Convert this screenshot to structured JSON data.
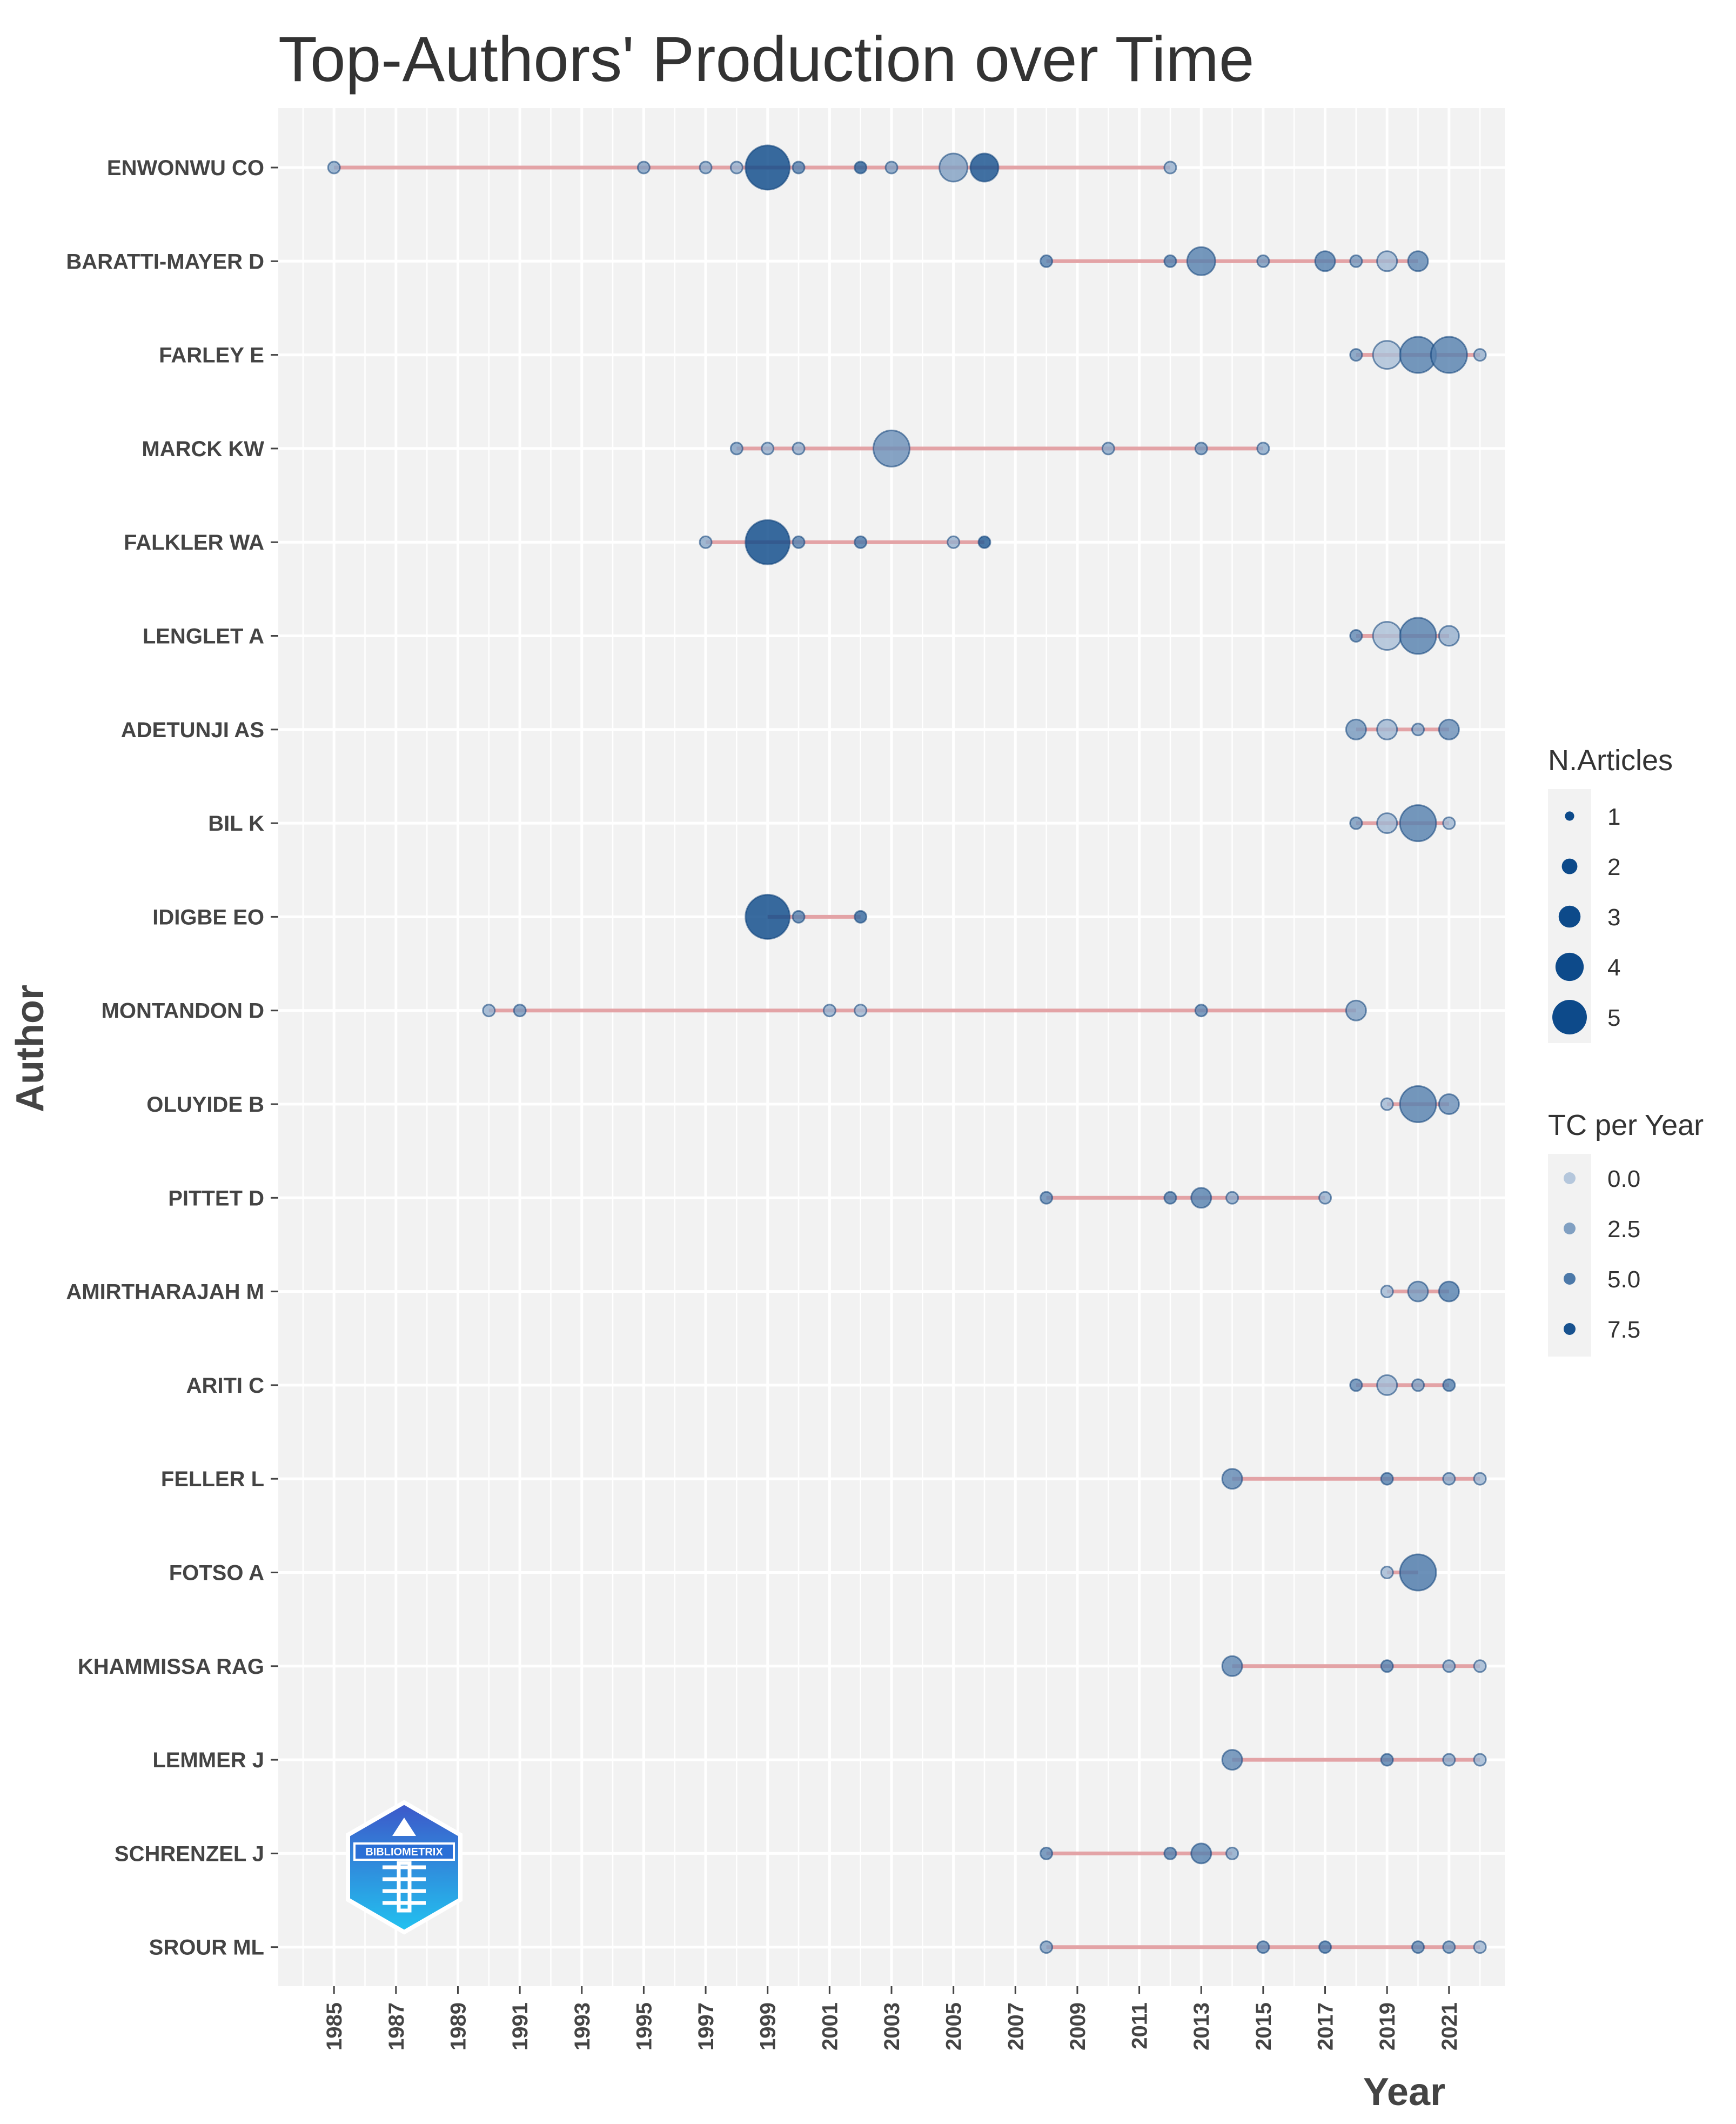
{
  "chart_data": {
    "type": "scatter",
    "title": "Top-Authors' Production over Time",
    "xlabel": "Year",
    "ylabel": "Author",
    "xlim": [
      1983.2,
      2022.8
    ],
    "x_ticks": [
      "1985",
      "1987",
      "1989",
      "1991",
      "1993",
      "1995",
      "1997",
      "1999",
      "2001",
      "2003",
      "2005",
      "2007",
      "2009",
      "2011",
      "2013",
      "2015",
      "2017",
      "2019",
      "2021"
    ],
    "grid": true,
    "colors": {
      "line": "#e3a3a6",
      "point_dark": "#0d4a8a",
      "point_light": "#b5c7dc",
      "panel": "#f2f2f2",
      "grid": "#ffffff"
    },
    "authors": [
      {
        "name": "ENWONWU CO",
        "points": [
          [
            1985,
            1,
            2
          ],
          [
            1995,
            1,
            2.5
          ],
          [
            1997,
            1,
            2
          ],
          [
            1998,
            1,
            1.5
          ],
          [
            1999,
            5,
            8
          ],
          [
            2000,
            1,
            4.5
          ],
          [
            2002,
            1,
            6.5
          ],
          [
            2003,
            1,
            2.5
          ],
          [
            2005,
            3,
            2.5
          ],
          [
            2006,
            3,
            7.5
          ],
          [
            2012,
            1,
            1.5
          ]
        ]
      },
      {
        "name": "BARATTI-MAYER D",
        "points": [
          [
            2008,
            1,
            4.5
          ],
          [
            2012,
            1,
            4.5
          ],
          [
            2013,
            3,
            4.5
          ],
          [
            2015,
            1,
            3
          ],
          [
            2017,
            2,
            4.5
          ],
          [
            2018,
            1,
            3
          ],
          [
            2019,
            2,
            1
          ],
          [
            2020,
            2,
            4
          ]
        ]
      },
      {
        "name": "FARLEY E",
        "points": [
          [
            2018,
            1,
            3
          ],
          [
            2019,
            3,
            0.5
          ],
          [
            2020,
            4,
            4.5
          ],
          [
            2021,
            4,
            4.5
          ],
          [
            2022,
            1,
            1.5
          ]
        ]
      },
      {
        "name": "MARCK KW",
        "points": [
          [
            1998,
            1,
            2.5
          ],
          [
            1999,
            1,
            1.5
          ],
          [
            2000,
            1,
            1.5
          ],
          [
            2003,
            4,
            3.5
          ],
          [
            2010,
            1,
            2
          ],
          [
            2013,
            1,
            3
          ],
          [
            2015,
            1,
            2
          ]
        ]
      },
      {
        "name": "FALKLER WA",
        "points": [
          [
            1997,
            1,
            2
          ],
          [
            1999,
            5,
            8
          ],
          [
            2000,
            1,
            4.5
          ],
          [
            2002,
            1,
            5
          ],
          [
            2005,
            1,
            1.5
          ],
          [
            2006,
            1,
            7
          ]
        ]
      },
      {
        "name": "LENGLET A",
        "points": [
          [
            2018,
            1,
            4
          ],
          [
            2019,
            3,
            0.5
          ],
          [
            2020,
            4,
            4.5
          ],
          [
            2021,
            2,
            1.5
          ]
        ]
      },
      {
        "name": "ADETUNJI AS",
        "points": [
          [
            2018,
            2,
            3
          ],
          [
            2019,
            2,
            1
          ],
          [
            2020,
            1,
            2
          ],
          [
            2021,
            2,
            3.5
          ]
        ]
      },
      {
        "name": "BIL K",
        "points": [
          [
            2018,
            1,
            3
          ],
          [
            2019,
            2,
            1
          ],
          [
            2020,
            4,
            4.5
          ],
          [
            2021,
            1,
            1
          ]
        ]
      },
      {
        "name": "IDIGBE EO",
        "points": [
          [
            1999,
            5,
            8
          ],
          [
            2000,
            1,
            4.5
          ],
          [
            2002,
            1,
            6
          ]
        ]
      },
      {
        "name": "MONTANDON D",
        "points": [
          [
            1990,
            1,
            1.5
          ],
          [
            1991,
            1,
            3
          ],
          [
            2001,
            1,
            1.5
          ],
          [
            2002,
            1,
            1
          ],
          [
            2013,
            1,
            4
          ],
          [
            2018,
            2,
            2.5
          ]
        ]
      },
      {
        "name": "OLUYIDE B",
        "points": [
          [
            2019,
            1,
            1
          ],
          [
            2020,
            4,
            4.5
          ],
          [
            2021,
            2,
            3.5
          ]
        ]
      },
      {
        "name": "PITTET D",
        "points": [
          [
            2008,
            1,
            4
          ],
          [
            2012,
            1,
            4.5
          ],
          [
            2013,
            2,
            4.5
          ],
          [
            2014,
            1,
            2
          ],
          [
            2017,
            1,
            1.5
          ]
        ]
      },
      {
        "name": "AMIRTHARAJAH M",
        "points": [
          [
            2019,
            1,
            1
          ],
          [
            2020,
            2,
            3
          ],
          [
            2021,
            2,
            4.5
          ]
        ]
      },
      {
        "name": "ARITI C",
        "points": [
          [
            2018,
            1,
            4
          ],
          [
            2019,
            2,
            1
          ],
          [
            2020,
            1,
            2.5
          ],
          [
            2021,
            1,
            4.5
          ]
        ]
      },
      {
        "name": "FELLER L",
        "points": [
          [
            2014,
            2,
            4
          ],
          [
            2019,
            1,
            4.5
          ],
          [
            2021,
            1,
            2
          ],
          [
            2022,
            1,
            1
          ]
        ]
      },
      {
        "name": "FOTSO A",
        "points": [
          [
            2019,
            1,
            1
          ],
          [
            2020,
            4,
            5
          ]
        ]
      },
      {
        "name": "KHAMMISSA RAG",
        "points": [
          [
            2014,
            2,
            4
          ],
          [
            2019,
            1,
            4.5
          ],
          [
            2021,
            1,
            2
          ],
          [
            2022,
            1,
            1
          ]
        ]
      },
      {
        "name": "LEMMER J",
        "points": [
          [
            2014,
            2,
            4
          ],
          [
            2019,
            1,
            4.5
          ],
          [
            2021,
            1,
            2
          ],
          [
            2022,
            1,
            1
          ]
        ]
      },
      {
        "name": "SCHRENZEL J",
        "points": [
          [
            2008,
            1,
            4
          ],
          [
            2012,
            1,
            4.5
          ],
          [
            2013,
            2,
            4.5
          ],
          [
            2014,
            1,
            2
          ]
        ]
      },
      {
        "name": "SROUR ML",
        "points": [
          [
            2008,
            1,
            2.5
          ],
          [
            2015,
            1,
            4
          ],
          [
            2017,
            1,
            5
          ],
          [
            2020,
            1,
            4
          ],
          [
            2021,
            1,
            3
          ],
          [
            2022,
            1,
            1
          ]
        ]
      }
    ],
    "legend": {
      "position": "right",
      "size_title": "N.Articles",
      "size_entries": [
        "1",
        "2",
        "3",
        "4",
        "5"
      ],
      "size_values": [
        1,
        2,
        3,
        4,
        5
      ],
      "color_title": "TC per Year",
      "color_entries": [
        "0.0",
        "2.5",
        "5.0",
        "7.5"
      ],
      "color_values": [
        0,
        2.5,
        5,
        7.5
      ]
    },
    "logo_text": "BIBLIOMETRIX"
  }
}
